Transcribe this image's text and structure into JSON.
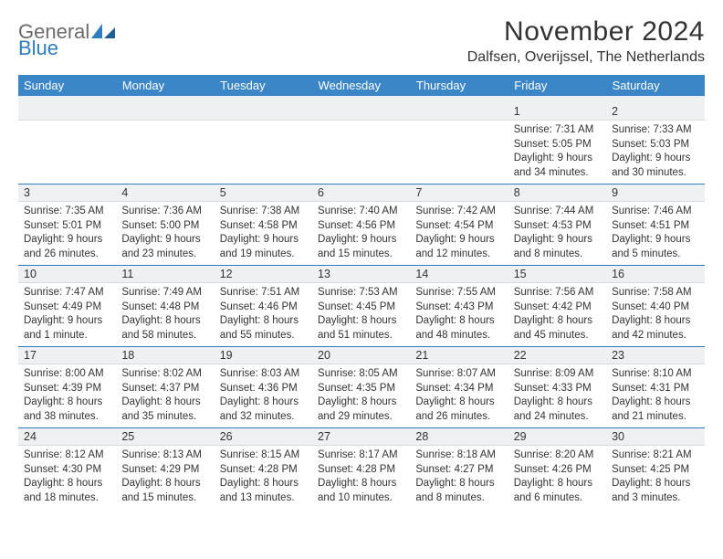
{
  "logo": {
    "general": "General",
    "blue": "Blue"
  },
  "header": {
    "title": "November 2024",
    "location": "Dalfsen, Overijssel, The Netherlands"
  },
  "colors": {
    "header_bg": "#3b86c6",
    "accent_line": "#2f7cc0",
    "num_bg": "#eef0f1",
    "text": "#333333"
  },
  "day_headers": [
    "Sunday",
    "Monday",
    "Tuesday",
    "Wednesday",
    "Thursday",
    "Friday",
    "Saturday"
  ],
  "weeks": [
    [
      null,
      null,
      null,
      null,
      null,
      {
        "n": "1",
        "sr": "Sunrise: 7:31 AM",
        "ss": "Sunset: 5:05 PM",
        "dl": "Daylight: 9 hours and 34 minutes."
      },
      {
        "n": "2",
        "sr": "Sunrise: 7:33 AM",
        "ss": "Sunset: 5:03 PM",
        "dl": "Daylight: 9 hours and 30 minutes."
      }
    ],
    [
      {
        "n": "3",
        "sr": "Sunrise: 7:35 AM",
        "ss": "Sunset: 5:01 PM",
        "dl": "Daylight: 9 hours and 26 minutes."
      },
      {
        "n": "4",
        "sr": "Sunrise: 7:36 AM",
        "ss": "Sunset: 5:00 PM",
        "dl": "Daylight: 9 hours and 23 minutes."
      },
      {
        "n": "5",
        "sr": "Sunrise: 7:38 AM",
        "ss": "Sunset: 4:58 PM",
        "dl": "Daylight: 9 hours and 19 minutes."
      },
      {
        "n": "6",
        "sr": "Sunrise: 7:40 AM",
        "ss": "Sunset: 4:56 PM",
        "dl": "Daylight: 9 hours and 15 minutes."
      },
      {
        "n": "7",
        "sr": "Sunrise: 7:42 AM",
        "ss": "Sunset: 4:54 PM",
        "dl": "Daylight: 9 hours and 12 minutes."
      },
      {
        "n": "8",
        "sr": "Sunrise: 7:44 AM",
        "ss": "Sunset: 4:53 PM",
        "dl": "Daylight: 9 hours and 8 minutes."
      },
      {
        "n": "9",
        "sr": "Sunrise: 7:46 AM",
        "ss": "Sunset: 4:51 PM",
        "dl": "Daylight: 9 hours and 5 minutes."
      }
    ],
    [
      {
        "n": "10",
        "sr": "Sunrise: 7:47 AM",
        "ss": "Sunset: 4:49 PM",
        "dl": "Daylight: 9 hours and 1 minute."
      },
      {
        "n": "11",
        "sr": "Sunrise: 7:49 AM",
        "ss": "Sunset: 4:48 PM",
        "dl": "Daylight: 8 hours and 58 minutes."
      },
      {
        "n": "12",
        "sr": "Sunrise: 7:51 AM",
        "ss": "Sunset: 4:46 PM",
        "dl": "Daylight: 8 hours and 55 minutes."
      },
      {
        "n": "13",
        "sr": "Sunrise: 7:53 AM",
        "ss": "Sunset: 4:45 PM",
        "dl": "Daylight: 8 hours and 51 minutes."
      },
      {
        "n": "14",
        "sr": "Sunrise: 7:55 AM",
        "ss": "Sunset: 4:43 PM",
        "dl": "Daylight: 8 hours and 48 minutes."
      },
      {
        "n": "15",
        "sr": "Sunrise: 7:56 AM",
        "ss": "Sunset: 4:42 PM",
        "dl": "Daylight: 8 hours and 45 minutes."
      },
      {
        "n": "16",
        "sr": "Sunrise: 7:58 AM",
        "ss": "Sunset: 4:40 PM",
        "dl": "Daylight: 8 hours and 42 minutes."
      }
    ],
    [
      {
        "n": "17",
        "sr": "Sunrise: 8:00 AM",
        "ss": "Sunset: 4:39 PM",
        "dl": "Daylight: 8 hours and 38 minutes."
      },
      {
        "n": "18",
        "sr": "Sunrise: 8:02 AM",
        "ss": "Sunset: 4:37 PM",
        "dl": "Daylight: 8 hours and 35 minutes."
      },
      {
        "n": "19",
        "sr": "Sunrise: 8:03 AM",
        "ss": "Sunset: 4:36 PM",
        "dl": "Daylight: 8 hours and 32 minutes."
      },
      {
        "n": "20",
        "sr": "Sunrise: 8:05 AM",
        "ss": "Sunset: 4:35 PM",
        "dl": "Daylight: 8 hours and 29 minutes."
      },
      {
        "n": "21",
        "sr": "Sunrise: 8:07 AM",
        "ss": "Sunset: 4:34 PM",
        "dl": "Daylight: 8 hours and 26 minutes."
      },
      {
        "n": "22",
        "sr": "Sunrise: 8:09 AM",
        "ss": "Sunset: 4:33 PM",
        "dl": "Daylight: 8 hours and 24 minutes."
      },
      {
        "n": "23",
        "sr": "Sunrise: 8:10 AM",
        "ss": "Sunset: 4:31 PM",
        "dl": "Daylight: 8 hours and 21 minutes."
      }
    ],
    [
      {
        "n": "24",
        "sr": "Sunrise: 8:12 AM",
        "ss": "Sunset: 4:30 PM",
        "dl": "Daylight: 8 hours and 18 minutes."
      },
      {
        "n": "25",
        "sr": "Sunrise: 8:13 AM",
        "ss": "Sunset: 4:29 PM",
        "dl": "Daylight: 8 hours and 15 minutes."
      },
      {
        "n": "26",
        "sr": "Sunrise: 8:15 AM",
        "ss": "Sunset: 4:28 PM",
        "dl": "Daylight: 8 hours and 13 minutes."
      },
      {
        "n": "27",
        "sr": "Sunrise: 8:17 AM",
        "ss": "Sunset: 4:28 PM",
        "dl": "Daylight: 8 hours and 10 minutes."
      },
      {
        "n": "28",
        "sr": "Sunrise: 8:18 AM",
        "ss": "Sunset: 4:27 PM",
        "dl": "Daylight: 8 hours and 8 minutes."
      },
      {
        "n": "29",
        "sr": "Sunrise: 8:20 AM",
        "ss": "Sunset: 4:26 PM",
        "dl": "Daylight: 8 hours and 6 minutes."
      },
      {
        "n": "30",
        "sr": "Sunrise: 8:21 AM",
        "ss": "Sunset: 4:25 PM",
        "dl": "Daylight: 8 hours and 3 minutes."
      }
    ]
  ]
}
